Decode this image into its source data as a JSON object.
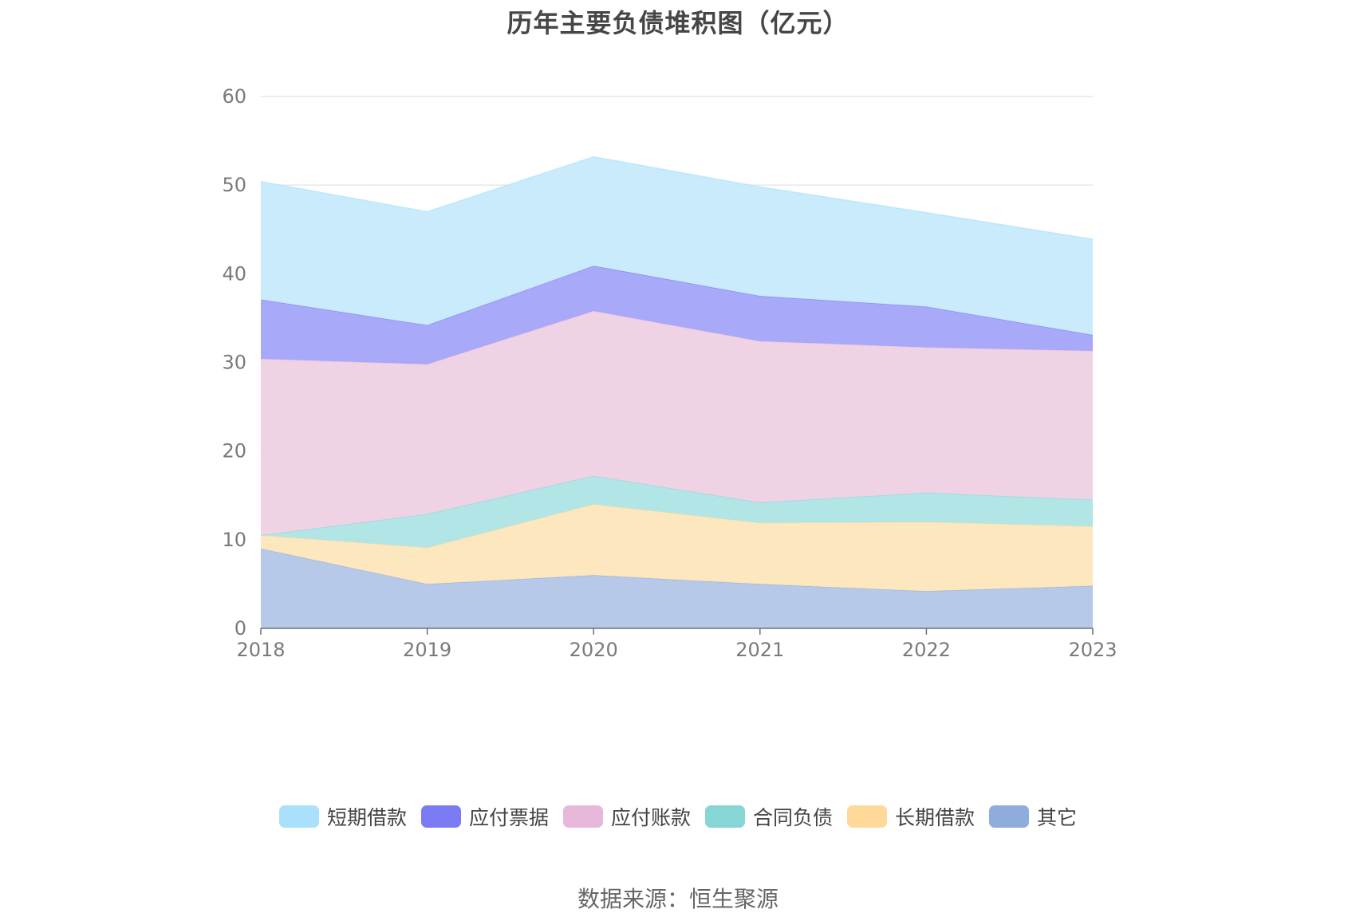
{
  "chart_data": {
    "type": "area",
    "stacked": true,
    "title": "历年主要负债堆积图（亿元）",
    "source": "数据来源：恒生聚源",
    "x": [
      "2018",
      "2019",
      "2020",
      "2021",
      "2022",
      "2023"
    ],
    "ylim": [
      0,
      60
    ],
    "yticks": [
      "0",
      "10",
      "20",
      "30",
      "40",
      "50",
      "60"
    ],
    "grid": true,
    "legend_position": "bottom",
    "series": [
      {
        "name": "其它",
        "color": "#b0c4e6",
        "legend_color": "#8eacdc",
        "values": [
          9.0,
          5.0,
          6.0,
          5.0,
          4.2,
          4.8
        ]
      },
      {
        "name": "长期借款",
        "color": "#fde5b8",
        "legend_color": "#ffd99a",
        "values": [
          1.5,
          4.1,
          8.0,
          6.9,
          7.8,
          6.7
        ]
      },
      {
        "name": "合同负债",
        "color": "#abe3e3",
        "legend_color": "#86d6d6",
        "values": [
          0.0,
          3.8,
          3.2,
          2.3,
          3.3,
          3.0
        ]
      },
      {
        "name": "应付账款",
        "color": "#efcee3",
        "legend_color": "#e8b8da",
        "values": [
          19.9,
          16.9,
          18.6,
          18.2,
          16.4,
          16.8
        ]
      },
      {
        "name": "应付票据",
        "color": "#a1a2f8",
        "legend_color": "#7b7cf4",
        "values": [
          6.7,
          4.4,
          5.1,
          5.1,
          4.6,
          1.8
        ]
      },
      {
        "name": "短期借款",
        "color": "#c5e9fc",
        "legend_color": "#a9e0fb",
        "values": [
          13.3,
          12.8,
          12.3,
          12.3,
          10.6,
          10.8
        ]
      }
    ]
  }
}
